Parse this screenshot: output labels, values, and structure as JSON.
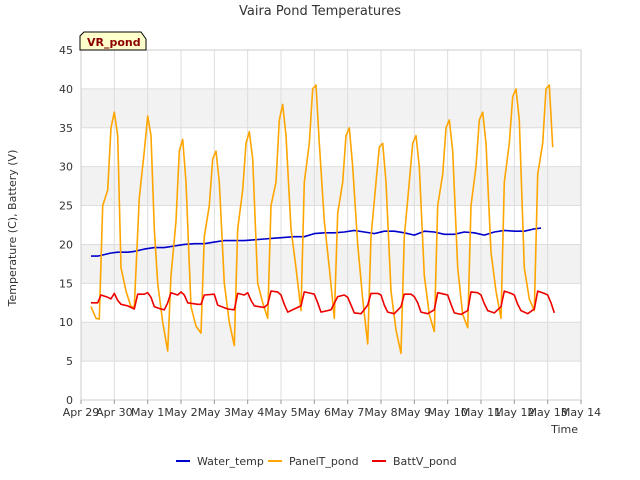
{
  "chart_data": {
    "type": "line",
    "title": "Vaira Pond Temperatures",
    "badge": "VR_pond",
    "xlabel": "Time",
    "ylabel": "Temperature (C), Battery (V)",
    "x_ticks": [
      "Apr 29",
      "Apr 30",
      "May 1",
      "May 2",
      "May 3",
      "May 4",
      "May 5",
      "May 6",
      "May 7",
      "May 8",
      "May 9",
      "May 10",
      "May 11",
      "May 12",
      "May 13",
      "May 14"
    ],
    "y_ticks": [
      0,
      5,
      10,
      15,
      20,
      25,
      30,
      35,
      40,
      45
    ],
    "xlim": [
      0,
      15
    ],
    "ylim": [
      0,
      45
    ],
    "grid": true,
    "legend_position": "bottom",
    "series": [
      {
        "name": "Water_temp",
        "color": "#0000cc",
        "points": [
          [
            0.3,
            18.5
          ],
          [
            0.5,
            18.5
          ],
          [
            0.7,
            18.7
          ],
          [
            0.9,
            18.9
          ],
          [
            1.1,
            19
          ],
          [
            1.4,
            19
          ],
          [
            1.6,
            19.1
          ],
          [
            1.9,
            19.4
          ],
          [
            2.2,
            19.6
          ],
          [
            2.5,
            19.6
          ],
          [
            2.8,
            19.8
          ],
          [
            3.1,
            20
          ],
          [
            3.4,
            20.1
          ],
          [
            3.7,
            20.1
          ],
          [
            4.0,
            20.3
          ],
          [
            4.3,
            20.5
          ],
          [
            4.6,
            20.5
          ],
          [
            4.9,
            20.5
          ],
          [
            5.2,
            20.6
          ],
          [
            5.5,
            20.7
          ],
          [
            5.8,
            20.8
          ],
          [
            6.1,
            20.9
          ],
          [
            6.4,
            21
          ],
          [
            6.7,
            21
          ],
          [
            7.0,
            21.4
          ],
          [
            7.3,
            21.5
          ],
          [
            7.6,
            21.5
          ],
          [
            7.9,
            21.6
          ],
          [
            8.2,
            21.8
          ],
          [
            8.5,
            21.6
          ],
          [
            8.8,
            21.4
          ],
          [
            9.1,
            21.7
          ],
          [
            9.4,
            21.7
          ],
          [
            9.7,
            21.5
          ],
          [
            10.0,
            21.2
          ],
          [
            10.3,
            21.7
          ],
          [
            10.6,
            21.6
          ],
          [
            10.9,
            21.3
          ],
          [
            11.2,
            21.3
          ],
          [
            11.5,
            21.6
          ],
          [
            11.8,
            21.5
          ],
          [
            12.1,
            21.2
          ],
          [
            12.4,
            21.6
          ],
          [
            12.7,
            21.8
          ],
          [
            13.0,
            21.7
          ],
          [
            13.3,
            21.7
          ],
          [
            13.6,
            22
          ],
          [
            13.8,
            22.1
          ]
        ]
      },
      {
        "name": "PanelT_pond",
        "color": "#ffa500",
        "points": [
          [
            0.3,
            12
          ],
          [
            0.45,
            10.5
          ],
          [
            0.55,
            10.4
          ],
          [
            0.65,
            25
          ],
          [
            0.8,
            27
          ],
          [
            0.9,
            35
          ],
          [
            1.0,
            37
          ],
          [
            1.1,
            34
          ],
          [
            1.2,
            17
          ],
          [
            1.35,
            14
          ],
          [
            1.5,
            12
          ],
          [
            1.6,
            12
          ],
          [
            1.75,
            26
          ],
          [
            1.9,
            32
          ],
          [
            2.0,
            36.5
          ],
          [
            2.1,
            34
          ],
          [
            2.2,
            22
          ],
          [
            2.3,
            15
          ],
          [
            2.45,
            10
          ],
          [
            2.6,
            6.3
          ],
          [
            2.7,
            16
          ],
          [
            2.85,
            23
          ],
          [
            2.95,
            32
          ],
          [
            3.05,
            33.5
          ],
          [
            3.15,
            28
          ],
          [
            3.3,
            12
          ],
          [
            3.45,
            9.5
          ],
          [
            3.6,
            8.6
          ],
          [
            3.7,
            21
          ],
          [
            3.85,
            25
          ],
          [
            3.95,
            31
          ],
          [
            4.05,
            32
          ],
          [
            4.15,
            28
          ],
          [
            4.3,
            15
          ],
          [
            4.45,
            10
          ],
          [
            4.6,
            7
          ],
          [
            4.7,
            22
          ],
          [
            4.85,
            27
          ],
          [
            4.95,
            33
          ],
          [
            5.05,
            34.5
          ],
          [
            5.15,
            31
          ],
          [
            5.3,
            15
          ],
          [
            5.45,
            12.5
          ],
          [
            5.6,
            10.5
          ],
          [
            5.7,
            25
          ],
          [
            5.85,
            28
          ],
          [
            5.95,
            36
          ],
          [
            6.05,
            38
          ],
          [
            6.15,
            34
          ],
          [
            6.3,
            22
          ],
          [
            6.45,
            17
          ],
          [
            6.6,
            11.5
          ],
          [
            6.7,
            28
          ],
          [
            6.85,
            33
          ],
          [
            6.95,
            40
          ],
          [
            7.05,
            40.5
          ],
          [
            7.15,
            33
          ],
          [
            7.3,
            23
          ],
          [
            7.45,
            17
          ],
          [
            7.6,
            10.5
          ],
          [
            7.7,
            24
          ],
          [
            7.85,
            28
          ],
          [
            7.95,
            34
          ],
          [
            8.05,
            35
          ],
          [
            8.15,
            30
          ],
          [
            8.3,
            20
          ],
          [
            8.45,
            13
          ],
          [
            8.6,
            7.2
          ],
          [
            8.7,
            21
          ],
          [
            8.85,
            28
          ],
          [
            8.95,
            32.5
          ],
          [
            9.05,
            33
          ],
          [
            9.15,
            28
          ],
          [
            9.3,
            14
          ],
          [
            9.45,
            9
          ],
          [
            9.6,
            6
          ],
          [
            9.7,
            21
          ],
          [
            9.85,
            28
          ],
          [
            9.95,
            33
          ],
          [
            10.05,
            34
          ],
          [
            10.15,
            30
          ],
          [
            10.3,
            16
          ],
          [
            10.45,
            11
          ],
          [
            10.6,
            8.8
          ],
          [
            10.7,
            25
          ],
          [
            10.85,
            29
          ],
          [
            10.95,
            35
          ],
          [
            11.05,
            36
          ],
          [
            11.15,
            32
          ],
          [
            11.3,
            17
          ],
          [
            11.45,
            11
          ],
          [
            11.6,
            9.3
          ],
          [
            11.7,
            25
          ],
          [
            11.85,
            30
          ],
          [
            11.95,
            36
          ],
          [
            12.05,
            37
          ],
          [
            12.15,
            33
          ],
          [
            12.3,
            19
          ],
          [
            12.45,
            14
          ],
          [
            12.6,
            10.5
          ],
          [
            12.7,
            28
          ],
          [
            12.85,
            33
          ],
          [
            12.95,
            39
          ],
          [
            13.05,
            40
          ],
          [
            13.15,
            36
          ],
          [
            13.3,
            17
          ],
          [
            13.45,
            13
          ],
          [
            13.6,
            11.5
          ],
          [
            13.7,
            29
          ],
          [
            13.85,
            33
          ],
          [
            13.95,
            40
          ],
          [
            14.05,
            40.5
          ],
          [
            14.15,
            32.5
          ]
        ]
      },
      {
        "name": "BattV_pond",
        "color": "#ee0000",
        "points": [
          [
            0.3,
            12.5
          ],
          [
            0.5,
            12.5
          ],
          [
            0.6,
            13.5
          ],
          [
            0.8,
            13.2
          ],
          [
            0.9,
            13
          ],
          [
            1.0,
            13.7
          ],
          [
            1.1,
            12.8
          ],
          [
            1.2,
            12.3
          ],
          [
            1.4,
            12.1
          ],
          [
            1.6,
            11.7
          ],
          [
            1.7,
            13.6
          ],
          [
            1.9,
            13.6
          ],
          [
            2.0,
            13.8
          ],
          [
            2.1,
            13.2
          ],
          [
            2.2,
            12
          ],
          [
            2.4,
            11.7
          ],
          [
            2.5,
            11.6
          ],
          [
            2.6,
            12.5
          ],
          [
            2.7,
            13.8
          ],
          [
            2.9,
            13.5
          ],
          [
            3.0,
            13.9
          ],
          [
            3.1,
            13.5
          ],
          [
            3.2,
            12.5
          ],
          [
            3.5,
            12.3
          ],
          [
            3.6,
            12.3
          ],
          [
            3.7,
            13.5
          ],
          [
            4.0,
            13.6
          ],
          [
            4.1,
            12.2
          ],
          [
            4.4,
            11.7
          ],
          [
            4.6,
            11.6
          ],
          [
            4.7,
            13.7
          ],
          [
            4.9,
            13.5
          ],
          [
            5.0,
            13.8
          ],
          [
            5.1,
            12.8
          ],
          [
            5.2,
            12.1
          ],
          [
            5.5,
            11.9
          ],
          [
            5.6,
            12.3
          ],
          [
            5.7,
            14
          ],
          [
            5.9,
            13.9
          ],
          [
            6.0,
            13.5
          ],
          [
            6.1,
            12.3
          ],
          [
            6.2,
            11.3
          ],
          [
            6.4,
            11.7
          ],
          [
            6.6,
            12.1
          ],
          [
            6.7,
            13.9
          ],
          [
            6.9,
            13.7
          ],
          [
            7.0,
            13.6
          ],
          [
            7.1,
            12.5
          ],
          [
            7.2,
            11.3
          ],
          [
            7.5,
            11.6
          ],
          [
            7.7,
            13.3
          ],
          [
            7.9,
            13.5
          ],
          [
            8.0,
            13.2
          ],
          [
            8.1,
            12.2
          ],
          [
            8.2,
            11.2
          ],
          [
            8.4,
            11.1
          ],
          [
            8.6,
            12.2
          ],
          [
            8.7,
            13.7
          ],
          [
            8.9,
            13.7
          ],
          [
            9.0,
            13.5
          ],
          [
            9.1,
            12.2
          ],
          [
            9.2,
            11.3
          ],
          [
            9.4,
            11.1
          ],
          [
            9.6,
            12
          ],
          [
            9.7,
            13.6
          ],
          [
            9.9,
            13.6
          ],
          [
            10.0,
            13.3
          ],
          [
            10.1,
            12.5
          ],
          [
            10.2,
            11.3
          ],
          [
            10.4,
            11.1
          ],
          [
            10.6,
            11.6
          ],
          [
            10.7,
            13.8
          ],
          [
            10.9,
            13.6
          ],
          [
            11.0,
            13.5
          ],
          [
            11.1,
            12.3
          ],
          [
            11.2,
            11.2
          ],
          [
            11.4,
            11
          ],
          [
            11.6,
            11.5
          ],
          [
            11.7,
            13.9
          ],
          [
            11.9,
            13.8
          ],
          [
            12.0,
            13.5
          ],
          [
            12.1,
            12.4
          ],
          [
            12.2,
            11.5
          ],
          [
            12.4,
            11.2
          ],
          [
            12.6,
            12
          ],
          [
            12.7,
            14
          ],
          [
            12.9,
            13.7
          ],
          [
            13.0,
            13.5
          ],
          [
            13.1,
            12.3
          ],
          [
            13.2,
            11.5
          ],
          [
            13.4,
            11.1
          ],
          [
            13.6,
            11.7
          ],
          [
            13.7,
            14
          ],
          [
            13.9,
            13.7
          ],
          [
            14.0,
            13.5
          ],
          [
            14.1,
            12.5
          ],
          [
            14.2,
            11.2
          ]
        ]
      }
    ]
  }
}
